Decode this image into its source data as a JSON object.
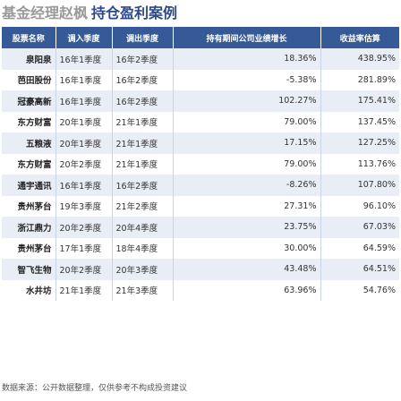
{
  "title": {
    "highlight": "基金经理赵枫",
    "main": "持仓盈利案例"
  },
  "table": {
    "headers": [
      "股票名称",
      "调入季度",
      "调出季度",
      "持有期间公司业绩增长",
      "收益率估算"
    ],
    "rows": [
      {
        "name": "泉阳泉",
        "in": "16年1季度",
        "out": "16年2季度",
        "growth": "18.36%",
        "return": "438.95%"
      },
      {
        "name": "芭田股份",
        "in": "16年1季度",
        "out": "16年2季度",
        "growth": "-5.38%",
        "return": "281.89%"
      },
      {
        "name": "冠豪高新",
        "in": "16年1季度",
        "out": "16年2季度",
        "growth": "102.27%",
        "return": "175.41%"
      },
      {
        "name": "东方财富",
        "in": "20年1季度",
        "out": "21年1季度",
        "growth": "79.00%",
        "return": "137.45%"
      },
      {
        "name": "五粮液",
        "in": "20年1季度",
        "out": "21年1季度",
        "growth": "17.15%",
        "return": "127.25%"
      },
      {
        "name": "东方财富",
        "in": "20年2季度",
        "out": "21年1季度",
        "growth": "79.00%",
        "return": "113.76%"
      },
      {
        "name": "通宇通讯",
        "in": "16年1季度",
        "out": "16年2季度",
        "growth": "-8.26%",
        "return": "107.80%"
      },
      {
        "name": "贵州茅台",
        "in": "19年3季度",
        "out": "21年2季度",
        "growth": "27.31%",
        "return": "96.10%"
      },
      {
        "name": "浙江鼎力",
        "in": "20年2季度",
        "out": "20年4季度",
        "growth": "23.75%",
        "return": "67.03%"
      },
      {
        "name": "贵州茅台",
        "in": "17年1季度",
        "out": "18年4季度",
        "growth": "30.00%",
        "return": "64.59%"
      },
      {
        "name": "智飞生物",
        "in": "20年2季度",
        "out": "20年3季度",
        "growth": "43.48%",
        "return": "64.51%"
      },
      {
        "name": "水井坊",
        "in": "21年1季度",
        "out": "21年3季度",
        "growth": "63.96%",
        "return": "54.76%"
      }
    ]
  },
  "footer": "数据来源：公开数据整理，仅供参考不构成投资建议"
}
